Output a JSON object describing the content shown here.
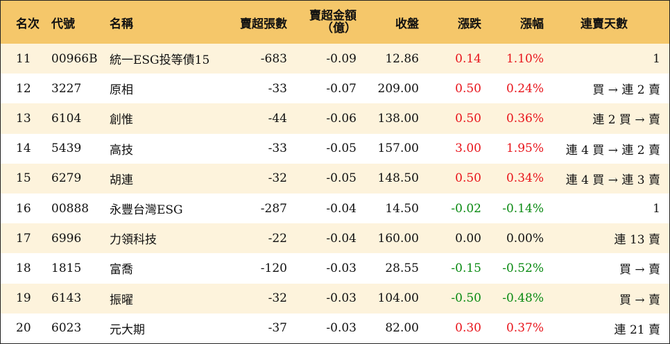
{
  "headers": {
    "rank": "名次",
    "code": "代號",
    "name": "名稱",
    "sell_lots": "賣超張數",
    "sell_amount_line1": "賣超金額",
    "sell_amount_line2": "（億）",
    "close": "收盤",
    "change": "漲跌",
    "pct": "漲幅",
    "streak": "連賣天數"
  },
  "rows": [
    {
      "rank": "11",
      "code": "00966B",
      "name": "統一ESG投等債15",
      "sell_lots": "-683",
      "sell_amount": "-0.09",
      "close": "12.86",
      "change": "0.14",
      "pct": "1.10%",
      "streak": "1",
      "dir": "up"
    },
    {
      "rank": "12",
      "code": "3227",
      "name": "原相",
      "sell_lots": "-33",
      "sell_amount": "-0.07",
      "close": "209.00",
      "change": "0.50",
      "pct": "0.24%",
      "streak": "買 → 連 2 賣",
      "dir": "up"
    },
    {
      "rank": "13",
      "code": "6104",
      "name": "創惟",
      "sell_lots": "-44",
      "sell_amount": "-0.06",
      "close": "138.00",
      "change": "0.50",
      "pct": "0.36%",
      "streak": "連 2 買 → 賣",
      "dir": "up"
    },
    {
      "rank": "14",
      "code": "5439",
      "name": "高技",
      "sell_lots": "-33",
      "sell_amount": "-0.05",
      "close": "157.00",
      "change": "3.00",
      "pct": "1.95%",
      "streak": "連 4 買 → 連 2 賣",
      "dir": "up"
    },
    {
      "rank": "15",
      "code": "6279",
      "name": "胡連",
      "sell_lots": "-32",
      "sell_amount": "-0.05",
      "close": "148.50",
      "change": "0.50",
      "pct": "0.34%",
      "streak": "連 4 買 → 連 3 賣",
      "dir": "up"
    },
    {
      "rank": "16",
      "code": "00888",
      "name": "永豐台灣ESG",
      "sell_lots": "-287",
      "sell_amount": "-0.04",
      "close": "14.50",
      "change": "-0.02",
      "pct": "-0.14%",
      "streak": "1",
      "dir": "down"
    },
    {
      "rank": "17",
      "code": "6996",
      "name": "力領科技",
      "sell_lots": "-22",
      "sell_amount": "-0.04",
      "close": "160.00",
      "change": "0.00",
      "pct": "0.00%",
      "streak": "連 13 賣",
      "dir": "flat"
    },
    {
      "rank": "18",
      "code": "1815",
      "name": "富喬",
      "sell_lots": "-120",
      "sell_amount": "-0.03",
      "close": "28.55",
      "change": "-0.15",
      "pct": "-0.52%",
      "streak": "買 → 賣",
      "dir": "down"
    },
    {
      "rank": "19",
      "code": "6143",
      "name": "振曜",
      "sell_lots": "-32",
      "sell_amount": "-0.03",
      "close": "104.00",
      "change": "-0.50",
      "pct": "-0.48%",
      "streak": "買 → 賣",
      "dir": "down"
    },
    {
      "rank": "20",
      "code": "6023",
      "name": "元大期",
      "sell_lots": "-37",
      "sell_amount": "-0.03",
      "close": "82.00",
      "change": "0.30",
      "pct": "0.37%",
      "streak": "連 21 賣",
      "dir": "up"
    }
  ],
  "colors": {
    "header_bg": "#f5c76a",
    "odd_row_bg": "#fdf3dc",
    "up": "#e8141b",
    "down": "#0a8a12"
  }
}
